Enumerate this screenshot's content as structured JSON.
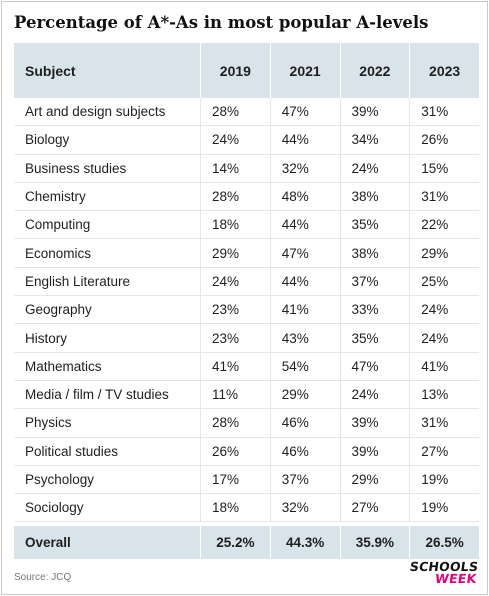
{
  "chart_data": {
    "type": "table",
    "title": "Percentage of A*-As in most popular A-levels",
    "columns": [
      "Subject",
      "2019",
      "2021",
      "2022",
      "2023"
    ],
    "rows": [
      [
        "Art and design subjects",
        "28%",
        "47%",
        "39%",
        "31%"
      ],
      [
        "Biology",
        "24%",
        "44%",
        "34%",
        "26%"
      ],
      [
        "Business studies",
        "14%",
        "32%",
        "24%",
        "15%"
      ],
      [
        "Chemistry",
        "28%",
        "48%",
        "38%",
        "31%"
      ],
      [
        "Computing",
        "18%",
        "44%",
        "35%",
        "22%"
      ],
      [
        "Economics",
        "29%",
        "47%",
        "38%",
        "29%"
      ],
      [
        "English Literature",
        "24%",
        "44%",
        "37%",
        "25%"
      ],
      [
        "Geography",
        "23%",
        "41%",
        "33%",
        "24%"
      ],
      [
        "History",
        "23%",
        "43%",
        "35%",
        "24%"
      ],
      [
        "Mathematics",
        "41%",
        "54%",
        "47%",
        "41%"
      ],
      [
        "Media / film / TV studies",
        "11%",
        "29%",
        "24%",
        "13%"
      ],
      [
        "Physics",
        "28%",
        "46%",
        "39%",
        "31%"
      ],
      [
        "Political studies",
        "26%",
        "46%",
        "39%",
        "27%"
      ],
      [
        "Psychology",
        "17%",
        "37%",
        "29%",
        "19%"
      ],
      [
        "Sociology",
        "18%",
        "32%",
        "27%",
        "19%"
      ]
    ],
    "footer": [
      "Overall",
      "25.2%",
      "44.3%",
      "35.9%",
      "26.5%"
    ],
    "source": "Source: JCQ"
  },
  "logo": {
    "line1": "SCHOOLS",
    "line2": "WEEK",
    "line2_color": "#e5007d"
  },
  "colors": {
    "header_bg": "#d9e3ea"
  }
}
